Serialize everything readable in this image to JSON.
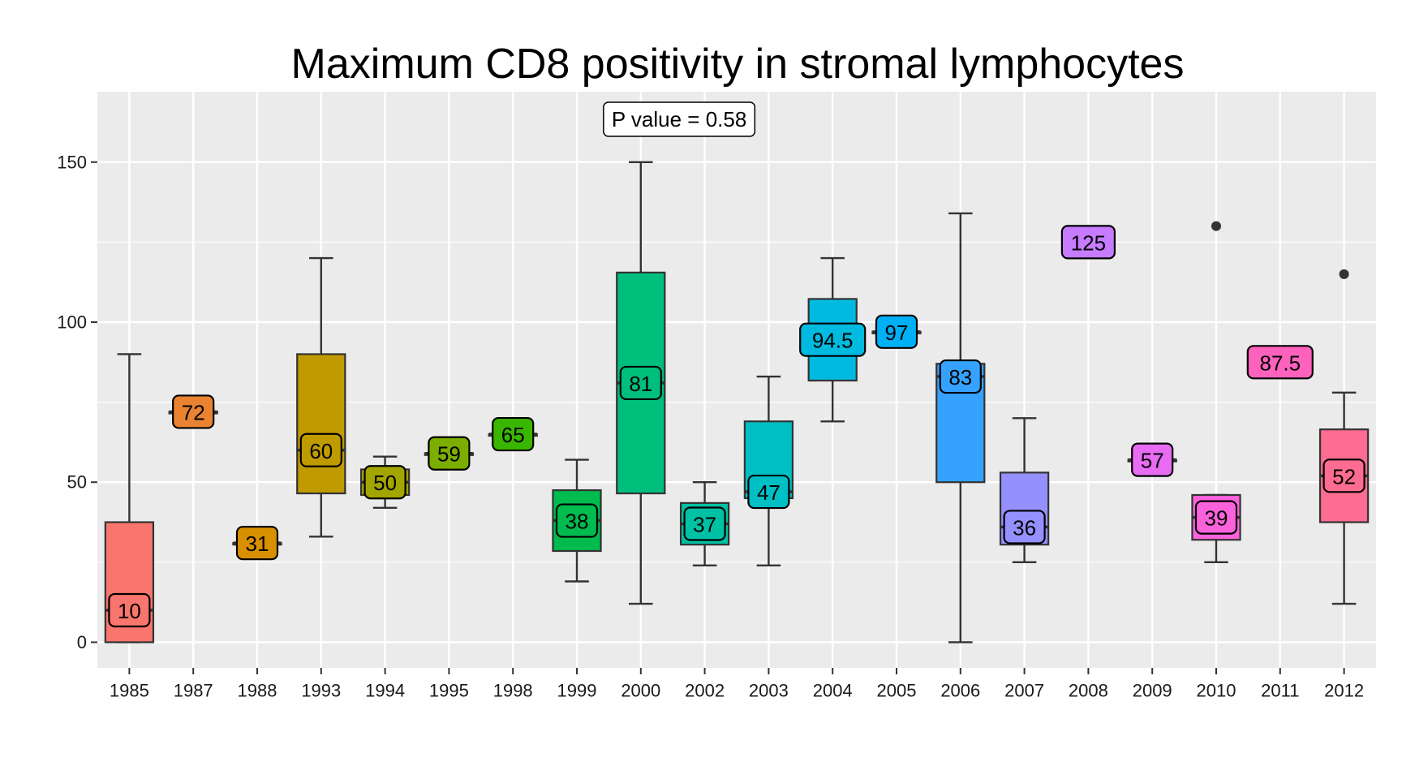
{
  "chart_data": {
    "type": "boxplot",
    "title": "Maximum CD8 positivity in stromal lymphocytes",
    "xlabel": "",
    "ylabel": "",
    "ylim": [
      -8,
      172
    ],
    "yticks": [
      0,
      50,
      100,
      150
    ],
    "grid": true,
    "legend": "none",
    "annotation": "P value = 0.58",
    "groups": [
      {
        "category": "1985",
        "q1": 0,
        "median": 10,
        "q3": 37.5,
        "whisker_low": 0,
        "whisker_high": 90,
        "outliers": [],
        "label": "10",
        "color": "#F8766D"
      },
      {
        "category": "1987",
        "q1": 72,
        "median": 72,
        "q3": 72,
        "whisker_low": 72,
        "whisker_high": 72,
        "outliers": [],
        "label": "72",
        "color": "#EA8331"
      },
      {
        "category": "1988",
        "q1": 31,
        "median": 31,
        "q3": 31,
        "whisker_low": 31,
        "whisker_high": 31,
        "outliers": [],
        "label": "31",
        "color": "#D89000"
      },
      {
        "category": "1993",
        "q1": 46.5,
        "median": 60,
        "q3": 90,
        "whisker_low": 33,
        "whisker_high": 120,
        "outliers": [],
        "label": "60",
        "color": "#C09B00"
      },
      {
        "category": "1994",
        "q1": 46,
        "median": 50,
        "q3": 54,
        "whisker_low": 42,
        "whisker_high": 58,
        "outliers": [],
        "label": "50",
        "color": "#A3A500"
      },
      {
        "category": "1995",
        "q1": 59,
        "median": 59,
        "q3": 59,
        "whisker_low": 59,
        "whisker_high": 59,
        "outliers": [],
        "label": "59",
        "color": "#7CAE00"
      },
      {
        "category": "1998",
        "q1": 65,
        "median": 65,
        "q3": 65,
        "whisker_low": 65,
        "whisker_high": 65,
        "outliers": [],
        "label": "65",
        "color": "#39B600"
      },
      {
        "category": "1999",
        "q1": 28.5,
        "median": 38,
        "q3": 47.5,
        "whisker_low": 19,
        "whisker_high": 57,
        "outliers": [],
        "label": "38",
        "color": "#00BB4E"
      },
      {
        "category": "2000",
        "q1": 46.5,
        "median": 81,
        "q3": 115.5,
        "whisker_low": 12,
        "whisker_high": 150,
        "outliers": [],
        "label": "81",
        "color": "#00BF7D"
      },
      {
        "category": "2002",
        "q1": 30.5,
        "median": 37,
        "q3": 43.5,
        "whisker_low": 24,
        "whisker_high": 50,
        "outliers": [],
        "label": "37",
        "color": "#00C1A3"
      },
      {
        "category": "2003",
        "q1": 45,
        "median": 47,
        "q3": 69,
        "whisker_low": 24,
        "whisker_high": 83,
        "outliers": [],
        "label": "47",
        "color": "#00BFC4"
      },
      {
        "category": "2004",
        "q1": 81.75,
        "median": 94.5,
        "q3": 107.25,
        "whisker_low": 69,
        "whisker_high": 120,
        "outliers": [],
        "label": "94.5",
        "color": "#00BAE0"
      },
      {
        "category": "2005",
        "q1": 97,
        "median": 97,
        "q3": 97,
        "whisker_low": 97,
        "whisker_high": 97,
        "outliers": [],
        "label": "97",
        "color": "#00B0F6"
      },
      {
        "category": "2006",
        "q1": 50,
        "median": 83,
        "q3": 87,
        "whisker_low": 0,
        "whisker_high": 134,
        "outliers": [],
        "label": "83",
        "color": "#35A2FF"
      },
      {
        "category": "2007",
        "q1": 30.5,
        "median": 36,
        "q3": 53,
        "whisker_low": 25,
        "whisker_high": 70,
        "outliers": [],
        "label": "36",
        "color": "#9590FF"
      },
      {
        "category": "2008",
        "q1": 125,
        "median": 125,
        "q3": 125,
        "whisker_low": 125,
        "whisker_high": 125,
        "outliers": [],
        "label": "125",
        "color": "#C77CFF"
      },
      {
        "category": "2009",
        "q1": 57,
        "median": 57,
        "q3": 57,
        "whisker_low": 57,
        "whisker_high": 57,
        "outliers": [],
        "label": "57",
        "color": "#E76BF3"
      },
      {
        "category": "2010",
        "q1": 32,
        "median": 39,
        "q3": 46,
        "whisker_low": 25,
        "whisker_high": 46,
        "outliers": [
          130
        ],
        "label": "39",
        "color": "#FA62DB"
      },
      {
        "category": "2011",
        "q1": 87.5,
        "median": 87.5,
        "q3": 87.5,
        "whisker_low": 87.5,
        "whisker_high": 87.5,
        "outliers": [],
        "label": "87.5",
        "color": "#FF62BC"
      },
      {
        "category": "2012",
        "q1": 37.5,
        "median": 52,
        "q3": 66.5,
        "whisker_low": 12,
        "whisker_high": 78,
        "outliers": [
          115
        ],
        "label": "52",
        "color": "#FF6C91"
      }
    ]
  }
}
